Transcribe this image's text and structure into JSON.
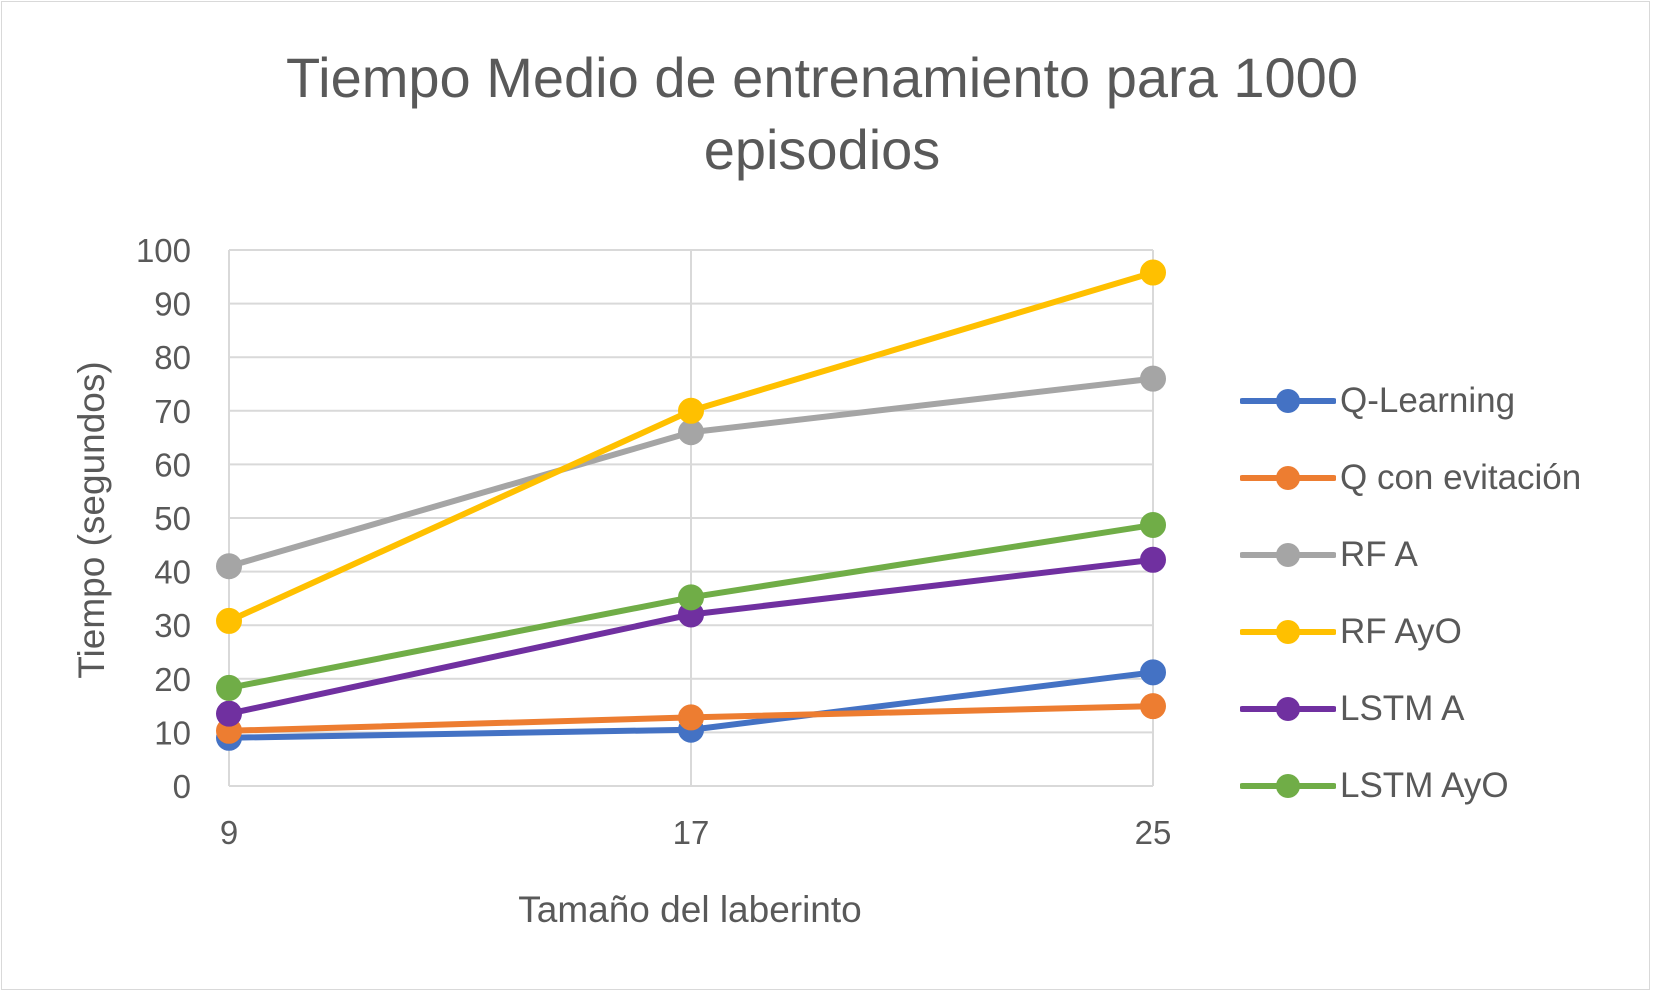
{
  "chart_data": {
    "type": "line",
    "title": "Tiempo Medio de entrenamiento para 1000 episodios",
    "xlabel": "Tamaño del laberinto",
    "ylabel": "Tiempo (segundos)",
    "x": [
      9,
      17,
      25
    ],
    "x_tick_labels": [
      "9",
      "17",
      "25"
    ],
    "ylim": [
      0,
      100
    ],
    "y_ticks": [
      0,
      10,
      20,
      30,
      40,
      50,
      60,
      70,
      80,
      90,
      100
    ],
    "grid": true,
    "legend_position": "right",
    "series": [
      {
        "name": "Q-Learning",
        "color": "#4472C4",
        "values": [
          9,
          10.5,
          21.2
        ]
      },
      {
        "name": "Q con evitación",
        "color": "#ED7D31",
        "values": [
          10.3,
          12.8,
          14.9
        ]
      },
      {
        "name": "RF A",
        "color": "#A5A5A5",
        "values": [
          41,
          66,
          76
        ]
      },
      {
        "name": "RF AyO",
        "color": "#FFC000",
        "values": [
          30.8,
          70,
          95.8
        ]
      },
      {
        "name": "LSTM A",
        "color": "#7030A0",
        "values": [
          13.5,
          32,
          42.2
        ]
      },
      {
        "name": "LSTM AyO",
        "color": "#70AD47",
        "values": [
          18.3,
          35.2,
          48.7
        ]
      }
    ]
  }
}
